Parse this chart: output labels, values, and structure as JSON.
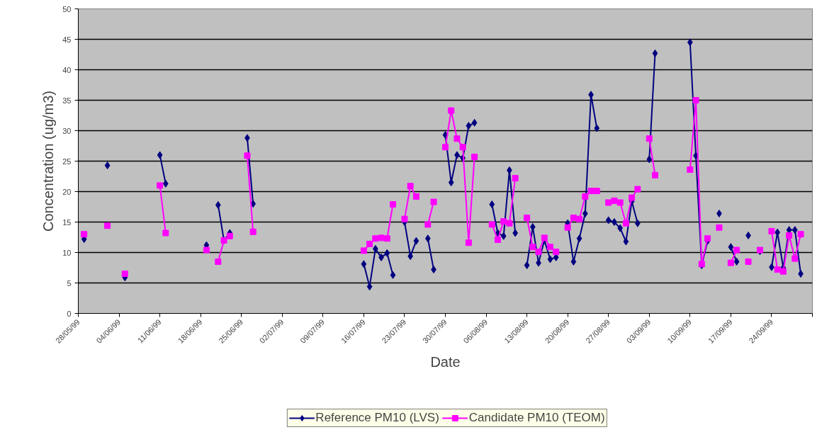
{
  "chart_data": {
    "type": "line",
    "xlabel": "Date",
    "ylabel": "Concentration (ug/m3)",
    "x": [
      "1999-05-29",
      "1999-05-30",
      "1999-06-02",
      "1999-06-03",
      "1999-06-05",
      "1999-06-06",
      "1999-06-11",
      "1999-06-12",
      "1999-06-13",
      "1999-06-19",
      "1999-06-20",
      "1999-06-21",
      "1999-06-22",
      "1999-06-23",
      "1999-06-24",
      "1999-06-26",
      "1999-06-27",
      "1999-06-28",
      "1999-07-16",
      "1999-07-17",
      "1999-07-18",
      "1999-07-19",
      "1999-07-20",
      "1999-07-21",
      "1999-07-22",
      "1999-07-23",
      "1999-07-24",
      "1999-07-25",
      "1999-07-26",
      "1999-07-27",
      "1999-07-28",
      "1999-07-29",
      "1999-07-30",
      "1999-07-31",
      "1999-08-01",
      "1999-08-02",
      "1999-08-03",
      "1999-08-04",
      "1999-08-05",
      "1999-08-07",
      "1999-08-08",
      "1999-08-09",
      "1999-08-10",
      "1999-08-11",
      "1999-08-12",
      "1999-08-13",
      "1999-08-14",
      "1999-08-15",
      "1999-08-16",
      "1999-08-17",
      "1999-08-18",
      "1999-08-19",
      "1999-08-20",
      "1999-08-21",
      "1999-08-22",
      "1999-08-23",
      "1999-08-24",
      "1999-08-25",
      "1999-08-26",
      "1999-08-27",
      "1999-08-28",
      "1999-08-29",
      "1999-08-30",
      "1999-08-31",
      "1999-09-01",
      "1999-09-02",
      "1999-09-03",
      "1999-09-04",
      "1999-09-05",
      "1999-09-10",
      "1999-09-11",
      "1999-09-12",
      "1999-09-13",
      "1999-09-14",
      "1999-09-15",
      "1999-09-16",
      "1999-09-17",
      "1999-09-18",
      "1999-09-19",
      "1999-09-20",
      "1999-09-21",
      "1999-09-22",
      "1999-09-23",
      "1999-09-24",
      "1999-09-25",
      "1999-09-26",
      "1999-09-27",
      "1999-09-28",
      "1999-09-29"
    ],
    "series": [
      {
        "name": "Reference PM10 (LVS)",
        "color": "#000080",
        "marker": "diamond",
        "values": [
          12.2,
          null,
          24.3,
          null,
          5.9,
          null,
          26.0,
          21.3,
          null,
          11.2,
          null,
          17.8,
          12.0,
          13.2,
          null,
          28.8,
          18.0,
          null,
          8.1,
          4.4,
          10.6,
          9.2,
          9.9,
          6.3,
          null,
          15.0,
          9.4,
          11.9,
          null,
          12.3,
          7.2,
          null,
          29.3,
          21.5,
          26.0,
          25.5,
          30.8,
          31.3,
          null,
          17.9,
          13.2,
          12.7,
          23.5,
          13.2,
          null,
          7.9,
          14.2,
          8.3,
          12.0,
          8.9,
          9.2,
          null,
          14.8,
          8.5,
          12.3,
          16.4,
          35.9,
          30.4,
          null,
          15.3,
          15.0,
          14.0,
          11.8,
          18.4,
          14.8,
          null,
          25.3,
          42.7,
          null,
          44.5,
          25.9,
          7.9,
          11.9,
          null,
          16.4,
          null,
          10.9,
          8.5,
          null,
          12.8,
          null,
          10.2,
          null,
          7.6,
          13.3,
          7.5,
          13.7,
          13.7,
          6.5
        ]
      },
      {
        "name": "Candidate PM10 (TEOM)",
        "color": "#ff00ff",
        "marker": "square",
        "values": [
          13.0,
          null,
          14.4,
          null,
          6.5,
          null,
          21.0,
          13.2,
          null,
          10.4,
          null,
          8.5,
          12.0,
          12.7,
          null,
          25.9,
          13.4,
          null,
          10.3,
          11.4,
          12.3,
          12.4,
          12.3,
          17.9,
          null,
          15.5,
          20.9,
          19.2,
          null,
          14.6,
          18.3,
          null,
          27.3,
          33.3,
          28.7,
          27.3,
          11.6,
          25.7,
          null,
          14.6,
          12.1,
          15.1,
          14.8,
          22.2,
          null,
          15.7,
          10.9,
          10.1,
          12.4,
          10.9,
          10.1,
          null,
          14.1,
          15.7,
          15.5,
          19.2,
          20.1,
          20.1,
          null,
          18.2,
          18.5,
          18.2,
          14.8,
          19.0,
          20.4,
          null,
          28.7,
          22.7,
          null,
          23.6,
          35.0,
          8.1,
          12.3,
          null,
          14.1,
          null,
          8.3,
          10.4,
          null,
          8.5,
          null,
          10.4,
          null,
          13.5,
          7.2,
          6.9,
          12.8,
          9.0,
          13.0
        ]
      }
    ],
    "xlim": [
      "1999-05-28",
      "1999-10-01"
    ],
    "xticks": [
      {
        "value": "1999-05-28",
        "label": "28/05/99"
      },
      {
        "value": "1999-06-04",
        "label": "04/06/99"
      },
      {
        "value": "1999-06-11",
        "label": "11/06/99"
      },
      {
        "value": "1999-06-18",
        "label": "18/06/99"
      },
      {
        "value": "1999-06-25",
        "label": "25/06/99"
      },
      {
        "value": "1999-07-02",
        "label": "02/07/99"
      },
      {
        "value": "1999-07-09",
        "label": "09/07/99"
      },
      {
        "value": "1999-07-16",
        "label": "16/07/99"
      },
      {
        "value": "1999-07-23",
        "label": "23/07/99"
      },
      {
        "value": "1999-07-30",
        "label": "30/07/99"
      },
      {
        "value": "1999-08-06",
        "label": "06/08/99"
      },
      {
        "value": "1999-08-13",
        "label": "13/08/99"
      },
      {
        "value": "1999-08-20",
        "label": "20/08/99"
      },
      {
        "value": "1999-08-27",
        "label": "27/08/99"
      },
      {
        "value": "1999-09-03",
        "label": "03/09/99"
      },
      {
        "value": "1999-09-10",
        "label": "10/09/99"
      },
      {
        "value": "1999-09-17",
        "label": "17/09/99"
      },
      {
        "value": "1999-09-24",
        "label": "24/09/99"
      },
      {
        "value": "1999-10-01",
        "label": null
      }
    ],
    "ylim": [
      0,
      50
    ],
    "yticks": [
      0,
      5,
      10,
      15,
      20,
      25,
      30,
      35,
      40,
      45,
      50
    ],
    "grid": "y",
    "legend": "bottom",
    "line_style": "solid"
  }
}
